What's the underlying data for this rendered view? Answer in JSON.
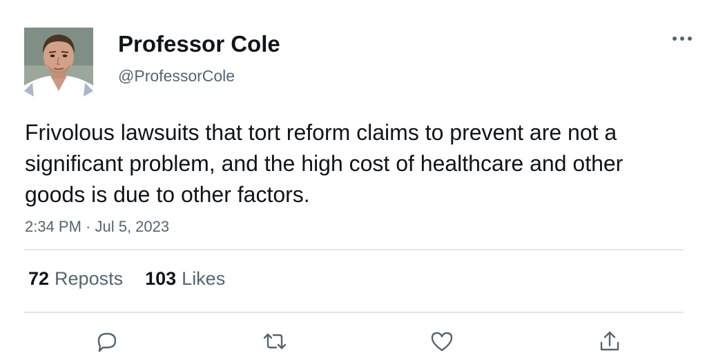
{
  "user": {
    "display_name": "Professor Cole",
    "handle": "@ProfessorCole",
    "avatar": "profile-photo"
  },
  "tweet": {
    "text": "Frivolous lawsuits that tort reform claims to prevent are not a significant problem, and the high cost of healthcare and other goods is due to other factors.",
    "timestamp": "2:34 PM · Jul 5, 2023"
  },
  "stats": {
    "reposts_count": "72",
    "reposts_label": "Reposts",
    "likes_count": "103",
    "likes_label": "Likes"
  },
  "actions": {
    "reply_icon": "speech-bubble-icon",
    "repost_icon": "retweet-arrows-icon",
    "like_icon": "heart-icon",
    "share_icon": "share-upload-icon"
  },
  "colors": {
    "primary_text": "#0f1419",
    "secondary_text": "#536471",
    "divider": "#e1e6ea"
  }
}
